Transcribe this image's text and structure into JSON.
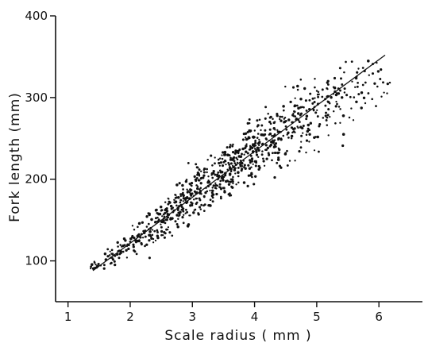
{
  "chart_data": {
    "type": "scatter",
    "title": "",
    "xlabel": "Scale radius  ( mm )",
    "ylabel": "Fork  length (mm)",
    "xlim": [
      0.8,
      6.7
    ],
    "ylim": [
      50,
      400
    ],
    "x_ticks": [
      1,
      2,
      3,
      4,
      5,
      6
    ],
    "y_ticks": [
      100,
      200,
      300,
      400
    ],
    "grid": false,
    "legend": "none",
    "fit_line": {
      "x": [
        1.4,
        6.1
      ],
      "y": [
        88,
        352
      ]
    },
    "scatter": {
      "n_points": 900,
      "x_range": [
        1.35,
        6.2
      ],
      "y_range": [
        90,
        345
      ],
      "description_of_trend": "dense positive linear cloud"
    },
    "marker_color": "#111111"
  }
}
